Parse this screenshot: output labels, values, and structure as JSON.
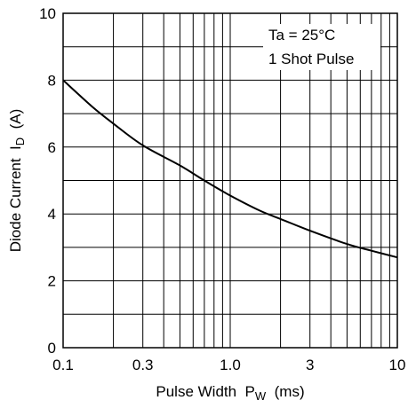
{
  "chart_data": {
    "type": "line",
    "xscale": "log",
    "xlim": [
      0.1,
      10
    ],
    "ylim": [
      0,
      10
    ],
    "x_ticks": [
      0.1,
      0.3,
      1.0,
      3,
      10
    ],
    "x_tick_labels": [
      "0.1",
      "0.3",
      "1.0",
      "3",
      "10"
    ],
    "y_ticks": [
      0,
      2,
      4,
      6,
      8,
      10
    ],
    "y_tick_labels": [
      "0",
      "2",
      "4",
      "6",
      "8",
      "10"
    ],
    "y_minor_step": 1,
    "grid": true,
    "xlabel": {
      "main": "Pulse Width  P",
      "sub": "W",
      "unit": "  (ms)"
    },
    "ylabel": {
      "main": "Diode Current  I",
      "sub": "D",
      "unit": "  (A)"
    },
    "annotations": [
      "Ta = 25°C",
      "1 Shot Pulse"
    ],
    "series": [
      {
        "x": [
          0.1,
          0.15,
          0.2,
          0.3,
          0.5,
          0.7,
          1.0,
          1.5,
          2.0,
          3.0,
          5.0,
          7.0,
          10.0
        ],
        "y": [
          8.0,
          7.2,
          6.7,
          6.05,
          5.45,
          5.0,
          4.55,
          4.1,
          3.85,
          3.5,
          3.1,
          2.9,
          2.7
        ]
      }
    ]
  }
}
